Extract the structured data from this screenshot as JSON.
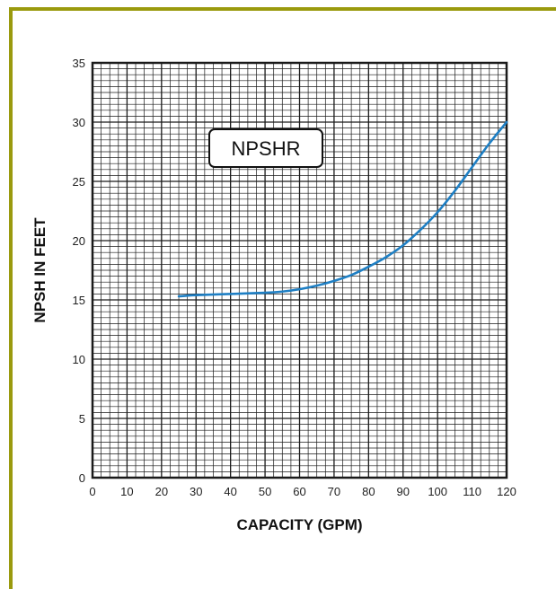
{
  "colors": {
    "frame": "#9a9a0e",
    "grid": "#1a1a1a",
    "curve": "#1e7fc4",
    "text": "#111111"
  },
  "chart_data": {
    "type": "line",
    "title": "",
    "xlabel": "CAPACITY (GPM)",
    "ylabel": "NPSH IN FEET",
    "xlim": [
      0,
      120
    ],
    "ylim": [
      0,
      35
    ],
    "x_ticks": [
      0,
      10,
      20,
      30,
      40,
      50,
      60,
      70,
      80,
      90,
      100,
      110,
      120
    ],
    "y_ticks": [
      0,
      5,
      10,
      15,
      20,
      25,
      30,
      35
    ],
    "grid": true,
    "annotations": [
      "NPSHR"
    ],
    "series": [
      {
        "x": [
          25,
          30,
          40,
          50,
          55,
          60,
          65,
          70,
          75,
          80,
          85,
          90,
          95,
          100,
          105,
          110,
          115,
          120
        ],
        "y": [
          15.3,
          15.4,
          15.5,
          15.6,
          15.7,
          15.9,
          16.2,
          16.6,
          17.1,
          17.8,
          18.6,
          19.6,
          20.9,
          22.4,
          24.2,
          26.2,
          28.2,
          30.0
        ]
      }
    ]
  }
}
